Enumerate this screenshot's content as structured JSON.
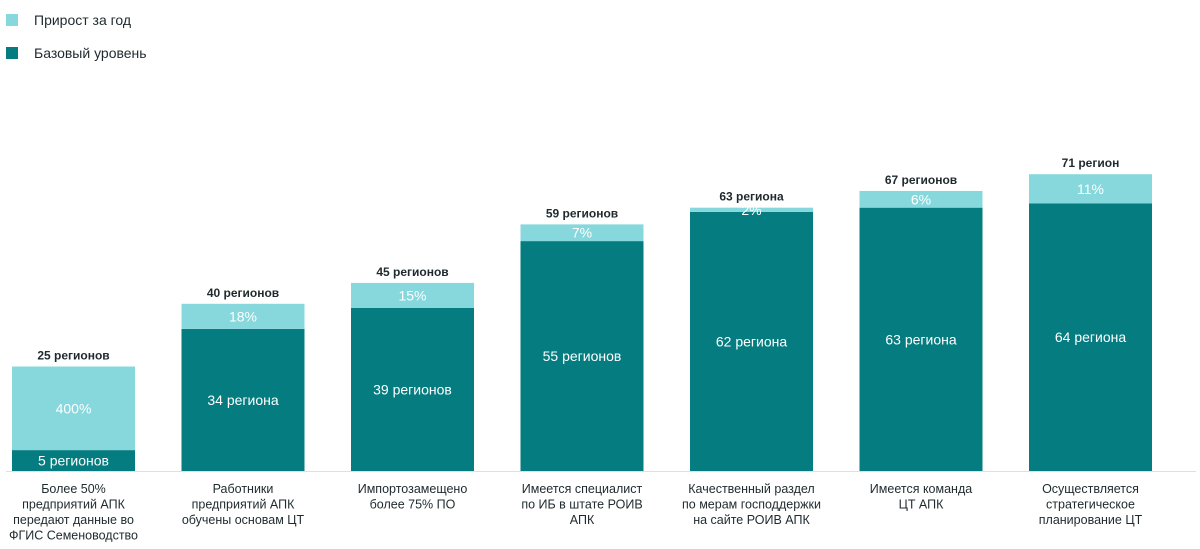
{
  "chart_data": {
    "type": "bar",
    "stacked": true,
    "legend": [
      {
        "name": "Прирост за год",
        "color": "#86d8dc"
      },
      {
        "name": "Базовый уровень",
        "color": "#057c80"
      }
    ],
    "categories": [
      [
        "Более 50%",
        "предприятий АПК",
        "передают данные во",
        "ФГИС Семеноводство"
      ],
      [
        "Работники",
        "предприятий АПК",
        "обучены основам ЦТ"
      ],
      [
        "Импортозамещено",
        "более 75% ПО"
      ],
      [
        "Имеется специалист",
        "по ИБ в штате РОИВ",
        "АПК"
      ],
      [
        "Качественный раздел",
        "по мерам господдержки",
        "на сайте РОИВ АПК"
      ],
      [
        "Имеется команда",
        "ЦТ АПК"
      ],
      [
        "Осуществляется",
        "стратегическое",
        "планирование ЦТ"
      ]
    ],
    "series": [
      {
        "name": "Базовый уровень",
        "values": [
          5,
          34,
          39,
          55,
          62,
          63,
          64
        ],
        "labels": [
          "5 регионов",
          "34 региона",
          "39 регионов",
          "55 регионов",
          "62 региона",
          "63 региона",
          "64 региона"
        ]
      },
      {
        "name": "Прирост за год",
        "values": [
          20,
          6,
          6,
          4,
          1,
          4,
          7
        ],
        "labels": [
          "400%",
          "18%",
          "15%",
          "7%",
          "2%",
          "6%",
          "11%"
        ]
      }
    ],
    "totals": [
      25,
      40,
      45,
      59,
      63,
      67,
      71
    ],
    "total_labels": [
      "25 регионов",
      "40 регионов",
      "45 регионов",
      "59 регионов",
      "63 региона",
      "67 регионов",
      "71 регион"
    ],
    "ylim": [
      0,
      80
    ]
  }
}
